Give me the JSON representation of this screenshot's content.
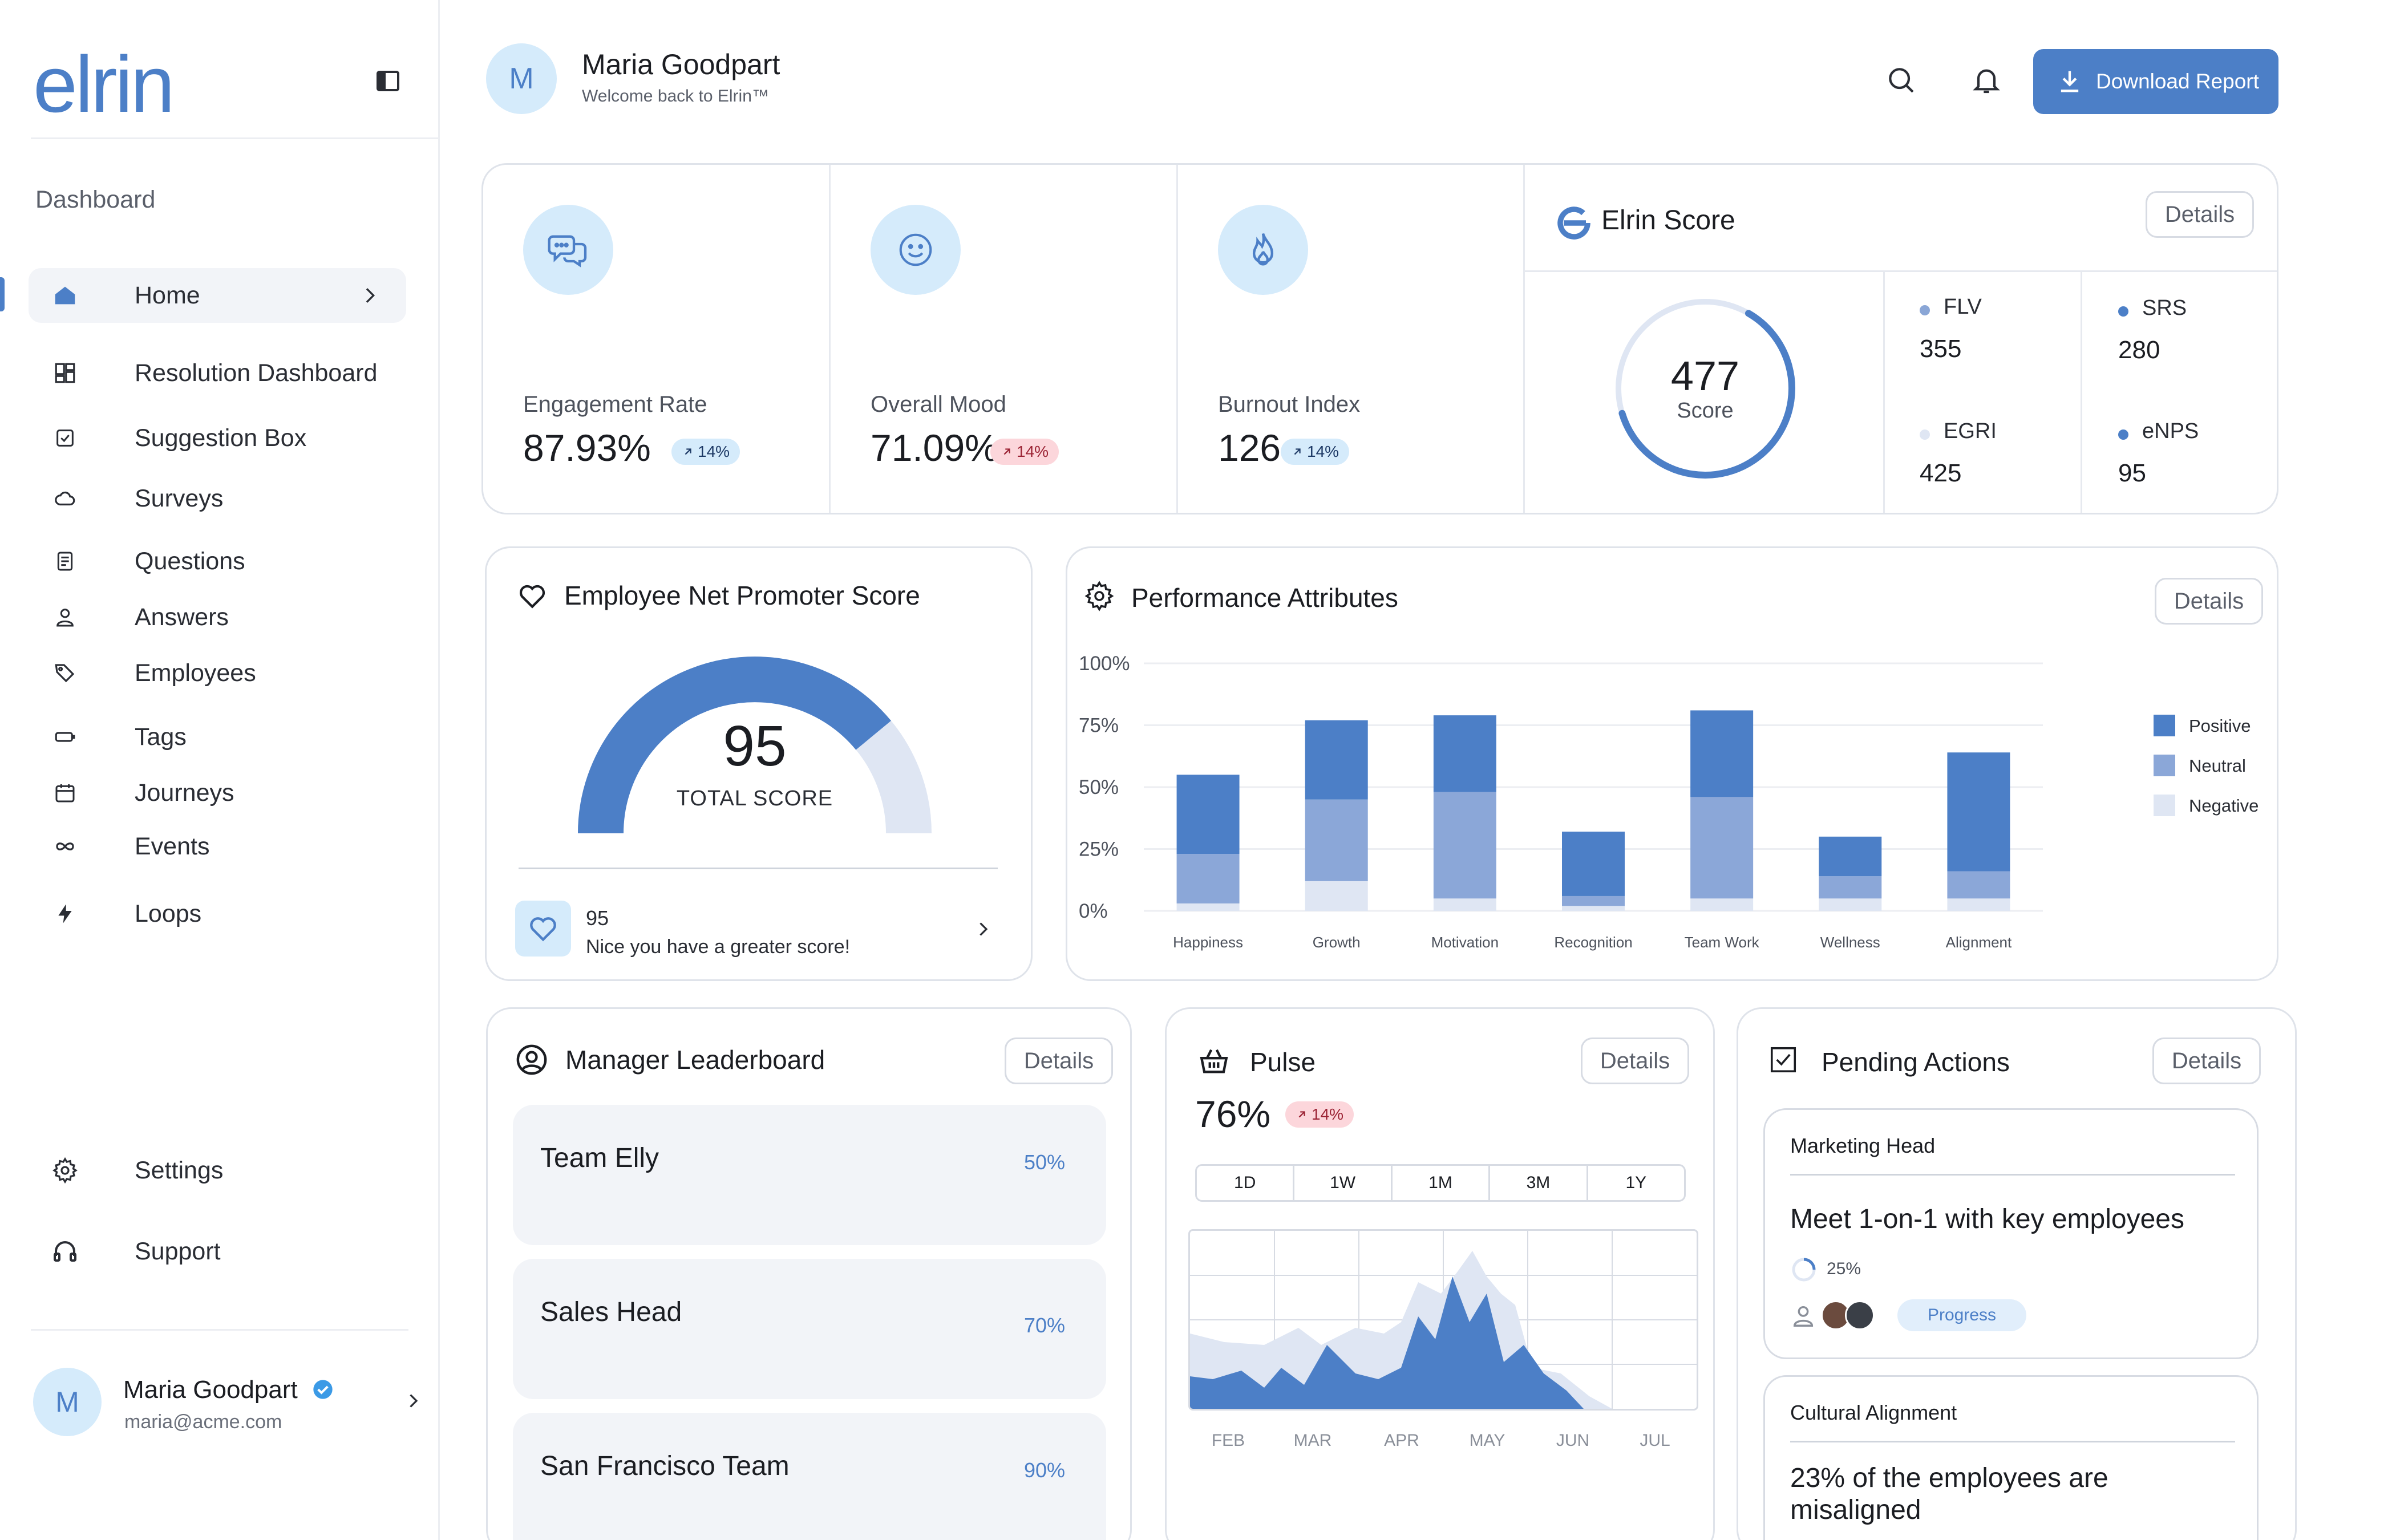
{
  "brand": {
    "logo_text": "elrin",
    "accent": "#4c7fc7",
    "light_blue": "#d5ebfb"
  },
  "sidebar": {
    "section_label": "Dashboard",
    "items": [
      {
        "label": "Home",
        "icon": "home-icon",
        "active": true
      },
      {
        "label": "Resolution Dashboard",
        "icon": "dashboard-grid-icon"
      },
      {
        "label": "Suggestion Box",
        "icon": "checkbox-icon"
      },
      {
        "label": "Surveys",
        "icon": "cloud-icon"
      },
      {
        "label": "Questions",
        "icon": "document-icon"
      },
      {
        "label": "Answers",
        "icon": "user-icon"
      },
      {
        "label": "Employees",
        "icon": "tags-icon"
      },
      {
        "label": "Tags",
        "icon": "tag-icon"
      },
      {
        "label": "Journeys",
        "icon": "calendar-icon"
      },
      {
        "label": "Events",
        "icon": "infinity-icon"
      },
      {
        "label": "Loops",
        "icon": "lightning-icon"
      }
    ],
    "bottom_items": [
      {
        "label": "Settings",
        "icon": "gear-icon"
      },
      {
        "label": "Support",
        "icon": "headphones-icon"
      }
    ],
    "profile": {
      "initial": "M",
      "name": "Maria Goodpart",
      "email": "maria@acme.com"
    }
  },
  "header": {
    "initial": "M",
    "name": "Maria Goodpart",
    "welcome": "Welcome back to Elrin™",
    "download_label": "Download Report"
  },
  "kpis": [
    {
      "label": "Engagement Rate",
      "value": "87.93%",
      "change": "14%",
      "trend": "up",
      "icon": "chat-bubbles-icon"
    },
    {
      "label": "Overall Mood",
      "value": "71.09%",
      "change": "14%",
      "trend": "down",
      "icon": "smiley-icon"
    },
    {
      "label": "Burnout Index",
      "value": "126",
      "change": "14%",
      "trend": "up",
      "icon": "flame-icon"
    }
  ],
  "elrin_score": {
    "title": "Elrin Score",
    "details_label": "Details",
    "value": "477",
    "sub": "Score",
    "fill_fraction": 0.62,
    "items": [
      {
        "name": "FLV",
        "value": "355",
        "color": "#8aa6d6"
      },
      {
        "name": "SRS",
        "value": "280",
        "color": "#4c7fc7"
      },
      {
        "name": "EGRI",
        "value": "425",
        "color": "#dfe6f3"
      },
      {
        "name": "eNPS",
        "value": "95",
        "color": "#4c7fc7"
      }
    ]
  },
  "enps": {
    "title": "Employee Net Promoter Score",
    "value": "95",
    "sub": "TOTAL SCORE",
    "fill_fraction": 0.78,
    "message_value": "95",
    "message": "Nice you have a greater score!"
  },
  "performance": {
    "title": "Performance Attributes",
    "details_label": "Details"
  },
  "chart_data": {
    "type": "bar",
    "stacked": true,
    "categories": [
      "Happiness",
      "Growth",
      "Motivation",
      "Recognition",
      "Team Work",
      "Wellness",
      "Alignment"
    ],
    "series": [
      {
        "name": "Negative",
        "color": "#dfe6f3",
        "values": [
          3,
          12,
          5,
          2,
          5,
          5,
          5
        ]
      },
      {
        "name": "Neutral",
        "color": "#8ba7d8",
        "values": [
          20,
          33,
          43,
          4,
          41,
          9,
          11
        ]
      },
      {
        "name": "Positive",
        "color": "#4c7fc7",
        "values": [
          32,
          32,
          31,
          26,
          35,
          16,
          48
        ]
      }
    ],
    "yticks": [
      "100%",
      "75%",
      "50%",
      "25%",
      "0%"
    ],
    "ylim": [
      0,
      100
    ],
    "legend": "right",
    "grid": true
  },
  "leaderboard": {
    "title": "Manager Leaderboard",
    "details_label": "Details",
    "rows": [
      {
        "name": "Team Elly",
        "pct": "50%"
      },
      {
        "name": "Sales Head",
        "pct": "70%"
      },
      {
        "name": "San Francisco Team",
        "pct": "90%"
      }
    ]
  },
  "pulse": {
    "title": "Pulse",
    "details_label": "Details",
    "value": "76%",
    "change": "14%",
    "ranges": [
      "1D",
      "1W",
      "1M",
      "3M",
      "1Y"
    ],
    "months": [
      "FEB",
      "MAR",
      "APR",
      "MAY",
      "JUN",
      "JUL"
    ]
  },
  "pending": {
    "title": "Pending Actions",
    "details_label": "Details",
    "tasks": [
      {
        "title": "Marketing Head",
        "body": "Meet 1-on-1 with key employees",
        "progress": "25%",
        "chip": "Progress"
      },
      {
        "title": "Cultural Alignment",
        "body": "23% of the employees are misaligned"
      }
    ]
  }
}
